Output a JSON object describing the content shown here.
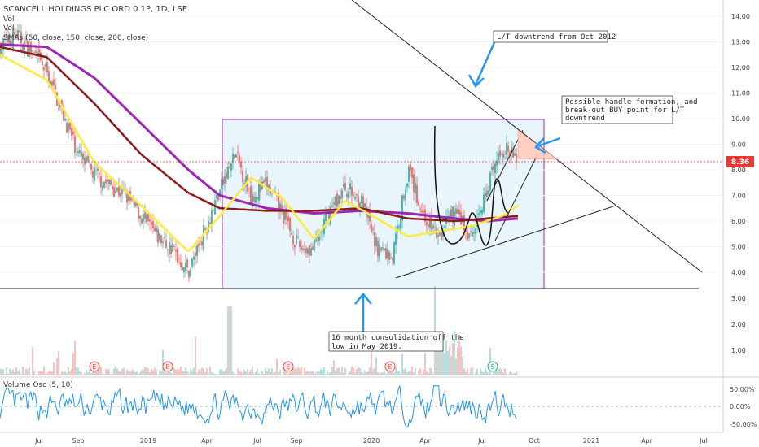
{
  "header": {
    "symbol_line": "SCANCELL HOLDINGS PLC ORD 0.1P, 1D, LSE",
    "vol1": "Vol",
    "vol2": "Vol",
    "smas": "SMAs (50, close, 150, close, 200, close)"
  },
  "price_badge": {
    "value": "8.36",
    "color": "#e53935"
  },
  "annotations": {
    "downtrend_note": "L/T downtrend from Oct 2012",
    "handle_note": [
      "Possible handle formation, and",
      "break-out BUY point for L/T",
      "downtrend"
    ],
    "consolidation_note": [
      "16 month consolidation off the",
      "low in May 2019."
    ]
  },
  "earnings_markers": [
    "E",
    "E",
    "E",
    "E",
    "S"
  ],
  "oscillator": {
    "label": "Volume Osc (5, 10)"
  },
  "colors": {
    "up_candle": "#26a69a",
    "down_candle": "#ef5350",
    "sma50": "#ffeb3b",
    "sma150": "#8b1a1a",
    "sma200": "#9c27b0",
    "oscillator": "#2196f3",
    "box_fill": "#e3f2fd",
    "box_stroke": "#9c27b0",
    "handle_fill": "#ffccbc",
    "arrow": "#2196f3"
  },
  "chart_data": {
    "type": "line",
    "title": "SCANCELL HOLDINGS PLC ORD 0.1P, 1D, LSE",
    "x_tick_labels": [
      "Jul",
      "Sep",
      "2019",
      "Apr",
      "Jul",
      "Sep",
      "2020",
      "Apr",
      "Jul",
      "Oct",
      "2021",
      "Apr",
      "Jul"
    ],
    "price_axis": {
      "ticks": [
        "14.00",
        "13.00",
        "12.00",
        "11.00",
        "10.00",
        "9.00",
        "8.00",
        "7.00",
        "6.00",
        "5.00",
        "4.00"
      ],
      "ylim": [
        3.6,
        14.4
      ],
      "last": 8.36
    },
    "volume_axis": {
      "ticks": [
        "3.00",
        "2.00",
        "1.00"
      ]
    },
    "osc_axis": {
      "ticks": [
        "50.00%",
        "0.00%",
        "-50.00%"
      ],
      "ylim": [
        -60,
        70
      ]
    },
    "price_series_months": [
      {
        "t": 0,
        "v": 12.8
      },
      {
        "t": 1,
        "v": 13.3
      },
      {
        "t": 2,
        "v": 12.6
      },
      {
        "t": 3,
        "v": 11.8
      },
      {
        "t": 4,
        "v": 10.2
      },
      {
        "t": 5,
        "v": 8.6
      },
      {
        "t": 6,
        "v": 7.8
      },
      {
        "t": 7,
        "v": 7.4
      },
      {
        "t": 8,
        "v": 7.0
      },
      {
        "t": 9,
        "v": 6.2
      },
      {
        "t": 10,
        "v": 5.4
      },
      {
        "t": 11,
        "v": 4.9
      },
      {
        "t": 12,
        "v": 4.0
      },
      {
        "t": 13,
        "v": 5.6
      },
      {
        "t": 14,
        "v": 7.2
      },
      {
        "t": 15,
        "v": 8.6
      },
      {
        "t": 16,
        "v": 7.0
      },
      {
        "t": 17,
        "v": 7.4
      },
      {
        "t": 18,
        "v": 6.3
      },
      {
        "t": 19,
        "v": 5.0
      },
      {
        "t": 20,
        "v": 4.9
      },
      {
        "t": 21,
        "v": 6.4
      },
      {
        "t": 22,
        "v": 7.3
      },
      {
        "t": 23,
        "v": 6.8
      },
      {
        "t": 24,
        "v": 5.0
      },
      {
        "t": 25,
        "v": 4.6
      },
      {
        "t": 26,
        "v": 8.0
      },
      {
        "t": 27,
        "v": 6.2
      },
      {
        "t": 28,
        "v": 5.4
      },
      {
        "t": 29,
        "v": 6.4
      },
      {
        "t": 30,
        "v": 5.3
      },
      {
        "t": 31,
        "v": 7.2
      },
      {
        "t": 32,
        "v": 8.9
      },
      {
        "t": 33,
        "v": 8.36
      }
    ],
    "sma50_months": [
      {
        "t": 0,
        "v": 12.5
      },
      {
        "t": 3,
        "v": 11.5
      },
      {
        "t": 6,
        "v": 8.3
      },
      {
        "t": 9,
        "v": 6.6
      },
      {
        "t": 12,
        "v": 4.8
      },
      {
        "t": 14,
        "v": 6.2
      },
      {
        "t": 16,
        "v": 7.7
      },
      {
        "t": 18,
        "v": 6.9
      },
      {
        "t": 20,
        "v": 5.3
      },
      {
        "t": 22,
        "v": 6.8
      },
      {
        "t": 24,
        "v": 6.1
      },
      {
        "t": 26,
        "v": 5.4
      },
      {
        "t": 28,
        "v": 5.6
      },
      {
        "t": 30,
        "v": 5.8
      },
      {
        "t": 32,
        "v": 6.2
      },
      {
        "t": 33,
        "v": 6.6
      }
    ],
    "sma150_months": [
      {
        "t": 0,
        "v": 12.8
      },
      {
        "t": 3,
        "v": 12.4
      },
      {
        "t": 6,
        "v": 10.6
      },
      {
        "t": 9,
        "v": 8.6
      },
      {
        "t": 12,
        "v": 7.1
      },
      {
        "t": 14,
        "v": 6.5
      },
      {
        "t": 17,
        "v": 6.4
      },
      {
        "t": 20,
        "v": 6.4
      },
      {
        "t": 23,
        "v": 6.5
      },
      {
        "t": 26,
        "v": 6.1
      },
      {
        "t": 29,
        "v": 6.0
      },
      {
        "t": 31,
        "v": 6.1
      },
      {
        "t": 33,
        "v": 6.2
      }
    ],
    "sma200_months": [
      {
        "t": 0,
        "v": 12.9
      },
      {
        "t": 3,
        "v": 12.8
      },
      {
        "t": 6,
        "v": 11.6
      },
      {
        "t": 9,
        "v": 9.8
      },
      {
        "t": 12,
        "v": 8.0
      },
      {
        "t": 14,
        "v": 7.0
      },
      {
        "t": 17,
        "v": 6.5
      },
      {
        "t": 20,
        "v": 6.3
      },
      {
        "t": 23,
        "v": 6.4
      },
      {
        "t": 26,
        "v": 6.3
      },
      {
        "t": 29,
        "v": 6.1
      },
      {
        "t": 31,
        "v": 6.0
      },
      {
        "t": 33,
        "v": 6.1
      }
    ],
    "consolidation_range": {
      "low": 3.4,
      "high": 10.0
    },
    "support_level": 3.4
  }
}
